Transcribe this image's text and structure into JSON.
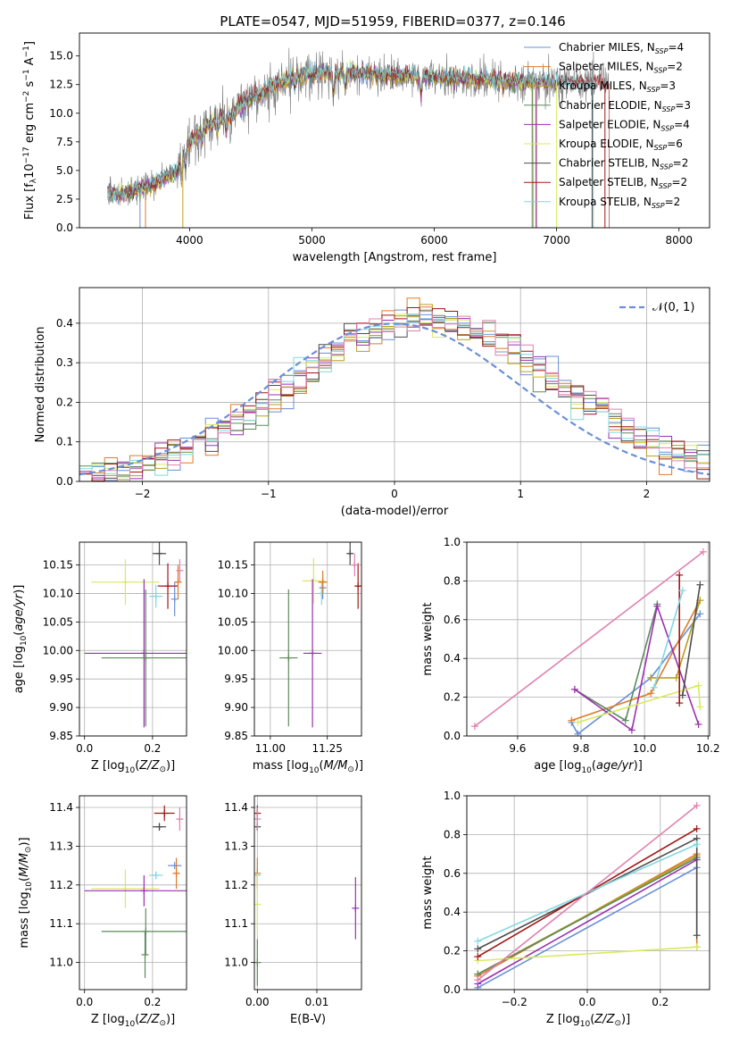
{
  "figure_title": "PLATE=0547, MJD=51959, FIBERID=0377, z=0.146",
  "colors": {
    "Chabrier MILES": "#6a8fd8",
    "Salpeter MILES": "#e07b2a",
    "Kroupa MILES": "#b8a020",
    "Chabrier ELODIE": "#5d8a5d",
    "Salpeter ELODIE": "#9b30b0",
    "Kroupa ELODIE": "#d8ea60",
    "Chabrier STELIB": "#4d4d4d",
    "Salpeter STELIB": "#a01818",
    "Kroupa STELIB": "#80d8e0",
    "extra_series": "#e080b0",
    "grid": "#b0b0b0",
    "normal_curve": "#6a8fd8"
  },
  "chart_data": [
    {
      "type": "line",
      "panel": "spectrum",
      "title": "PLATE=0547, MJD=51959, FIBERID=0377, z=0.146",
      "xlabel": "wavelength [Angstrom, rest frame]",
      "ylabel": "Flux [f_λ 10^-17 erg cm^-2 s^-1 A^-1]",
      "xlim": [
        3100,
        8250
      ],
      "ylim": [
        0,
        17
      ],
      "xticks": [
        4000,
        5000,
        6000,
        7000,
        8000
      ],
      "xtick_labels": [
        "4000",
        "5000",
        "6000",
        "7000",
        "8000"
      ],
      "yticks": [
        0,
        2.5,
        5,
        7.5,
        10,
        12.5,
        15
      ],
      "ytick_labels": [
        "0.0",
        "2.5",
        "5.0",
        "7.5",
        "10.0",
        "12.5",
        "15.0"
      ],
      "grid": false,
      "legend_position": "top-right",
      "legend": [
        {
          "model": "Chabrier MILES",
          "nssp": "4"
        },
        {
          "model": "Salpeter MILES",
          "nssp": "2"
        },
        {
          "model": "Kroupa MILES",
          "nssp": "3"
        },
        {
          "model": "Chabrier ELODIE",
          "nssp": "3"
        },
        {
          "model": "Salpeter ELODIE",
          "nssp": "4"
        },
        {
          "model": "Kroupa ELODIE",
          "nssp": "6"
        },
        {
          "model": "Chabrier STELIB",
          "nssp": "2"
        },
        {
          "model": "Salpeter STELIB",
          "nssp": "2"
        },
        {
          "model": "Kroupa STELIB",
          "nssp": "2"
        }
      ],
      "data_range": {
        "x_start": 3330,
        "x_end": 7430
      },
      "continuum": [
        [
          3330,
          3.0
        ],
        [
          3500,
          2.9
        ],
        [
          3700,
          3.8
        ],
        [
          3900,
          5.0
        ],
        [
          4000,
          7.5
        ],
        [
          4100,
          8.5
        ],
        [
          4300,
          9.8
        ],
        [
          4500,
          11.2
        ],
        [
          4700,
          12.5
        ],
        [
          4900,
          13.3
        ],
        [
          5100,
          13.5
        ],
        [
          5300,
          13.5
        ],
        [
          5500,
          13.4
        ],
        [
          5700,
          13.3
        ],
        [
          5900,
          13.2
        ],
        [
          6100,
          13.1
        ],
        [
          6300,
          13.0
        ],
        [
          6500,
          12.9
        ],
        [
          6700,
          12.8
        ],
        [
          6900,
          12.7
        ],
        [
          7100,
          12.7
        ],
        [
          7300,
          12.6
        ],
        [
          7430,
          12.5
        ]
      ],
      "absorption_lines": [
        [
          3934,
          2.0
        ],
        [
          3969,
          1.5
        ],
        [
          4102,
          1.0
        ],
        [
          4227,
          1.0
        ],
        [
          4300,
          1.6
        ],
        [
          4340,
          1.0
        ],
        [
          4861,
          1.0
        ],
        [
          5175,
          2.0
        ],
        [
          5270,
          1.0
        ],
        [
          5890,
          1.8
        ],
        [
          6563,
          1.0
        ]
      ],
      "dropouts": [
        3595,
        3640,
        3945,
        6800,
        6835,
        7000,
        7290,
        7395
      ]
    },
    {
      "type": "histogram",
      "panel": "residuals",
      "xlabel": "(data-model)/error",
      "ylabel": "Normed distribution",
      "xlim": [
        -2.5,
        2.5
      ],
      "ylim": [
        0,
        0.49
      ],
      "xticks": [
        -2,
        -1,
        0,
        1,
        2
      ],
      "xtick_labels": [
        "−2",
        "−1",
        "0",
        "1",
        "2"
      ],
      "yticks": [
        0,
        0.1,
        0.2,
        0.3,
        0.4
      ],
      "ytick_labels": [
        "0.0",
        "0.1",
        "0.2",
        "0.3",
        "0.4"
      ],
      "grid": true,
      "legend_position": "top-right",
      "legend_label": "𝒩(0, 1)",
      "bin_range": [
        -2.5,
        2.5
      ],
      "bin_width": 0.1,
      "reference_curve": {
        "type": "normal",
        "mean": 0,
        "sigma": 1
      },
      "envelope": {
        "mean": 0.25,
        "sigma": 1.05,
        "peak": 0.41
      },
      "series_count": 10
    },
    {
      "type": "scatter",
      "panel": "age-vs-Z",
      "xlabel": "Z [log10(Z/Z⊙)]",
      "ylabel": "age  [log10(age/yr)]",
      "xlim": [
        -0.015,
        0.3
      ],
      "ylim": [
        9.85,
        10.19
      ],
      "xticks": [
        0.0,
        0.2
      ],
      "xtick_labels": [
        "0.0",
        "0.2"
      ],
      "yticks": [
        9.85,
        9.9,
        9.95,
        10.0,
        10.05,
        10.1,
        10.15
      ],
      "ytick_labels": [
        "9.85",
        "9.90",
        "9.95",
        "10.00",
        "10.05",
        "10.10",
        "10.15"
      ],
      "grid": true,
      "points": [
        {
          "series": "Kroupa ELODIE",
          "x": 0.12,
          "y": 10.12,
          "xerr": 0.1,
          "yerr": 0.04
        },
        {
          "series": "Salpeter ELODIE",
          "x": 0.175,
          "y": 9.995,
          "xerr": 0.175,
          "yerr": 0.13
        },
        {
          "series": "Chabrier ELODIE",
          "x": 0.18,
          "y": 9.987,
          "xerr": 0.13,
          "yerr": 0.12
        },
        {
          "series": "Chabrier STELIB",
          "x": 0.22,
          "y": 10.17,
          "xerr": 0.02,
          "yerr": 0.02
        },
        {
          "series": "Kroupa STELIB",
          "x": 0.21,
          "y": 10.095,
          "xerr": 0.02,
          "yerr": 0.02
        },
        {
          "series": "Chabrier MILES",
          "x": 0.265,
          "y": 10.09,
          "xerr": 0.0,
          "yerr": 0.03
        },
        {
          "series": "Salpeter STELIB",
          "x": 0.245,
          "y": 10.113,
          "xerr": 0.03,
          "yerr": 0.04
        },
        {
          "series": "Salpeter MILES",
          "x": 0.275,
          "y": 10.12,
          "xerr": 0.01,
          "yerr": 0.03
        },
        {
          "series": "extra_series",
          "x": 0.28,
          "y": 10.14,
          "xerr": 0.01,
          "yerr": 0.02
        }
      ]
    },
    {
      "type": "scatter",
      "panel": "age-vs-mass",
      "xlabel": "mass [log10(M/M⊙)]",
      "ylabel": "",
      "xlim": [
        10.93,
        11.4
      ],
      "ylim": [
        9.85,
        10.19
      ],
      "xticks": [
        11.0,
        11.25
      ],
      "xtick_labels": [
        "11.00",
        "11.25"
      ],
      "yticks": [
        9.85,
        9.9,
        9.95,
        10.0,
        10.05,
        10.1,
        10.15
      ],
      "ytick_labels": [
        "9.85",
        "9.90",
        "9.95",
        "10.00",
        "10.05",
        "10.10",
        "10.15"
      ],
      "grid": true,
      "points": [
        {
          "series": "Kroupa ELODIE",
          "x": 11.19,
          "y": 10.122,
          "xerr": 0.05,
          "yerr": 0.04
        },
        {
          "series": "Salpeter ELODIE",
          "x": 11.185,
          "y": 9.995,
          "xerr": 0.04,
          "yerr": 0.13
        },
        {
          "series": "Chabrier ELODIE",
          "x": 11.08,
          "y": 9.987,
          "xerr": 0.04,
          "yerr": 0.12
        },
        {
          "series": "Chabrier STELIB",
          "x": 11.35,
          "y": 10.17,
          "xerr": 0.01,
          "yerr": 0.02
        },
        {
          "series": "Kroupa STELIB",
          "x": 11.225,
          "y": 10.1,
          "xerr": 0.01,
          "yerr": 0.02
        },
        {
          "series": "Chabrier MILES",
          "x": 11.23,
          "y": 10.11,
          "xerr": 0.01,
          "yerr": 0.02
        },
        {
          "series": "Salpeter MILES",
          "x": 11.23,
          "y": 10.12,
          "xerr": 0.02,
          "yerr": 0.02
        },
        {
          "series": "Salpeter STELIB",
          "x": 11.385,
          "y": 10.113,
          "xerr": 0.01,
          "yerr": 0.04
        },
        {
          "series": "extra_series",
          "x": 11.37,
          "y": 10.15,
          "xerr": 0.01,
          "yerr": 0.02
        }
      ]
    },
    {
      "type": "line",
      "panel": "mass-weight-vs-age",
      "xlabel": "age  [log10(age/yr)]",
      "ylabel": "mass weight",
      "xlim": [
        9.44,
        10.205
      ],
      "ylim": [
        0,
        1
      ],
      "xticks": [
        9.6,
        9.8,
        10.0,
        10.2
      ],
      "xtick_labels": [
        "9.6",
        "9.8",
        "10.0",
        "10.2"
      ],
      "yticks": [
        0,
        0.2,
        0.4,
        0.6,
        0.8,
        1.0
      ],
      "ytick_labels": [
        "0.0",
        "0.2",
        "0.4",
        "0.6",
        "0.8",
        "1.0"
      ],
      "grid": true,
      "series": [
        {
          "name": "Chabrier MILES",
          "x": [
            9.77,
            9.79,
            10.02,
            10.175
          ],
          "y": [
            0.07,
            0.01,
            0.3,
            0.63
          ]
        },
        {
          "name": "Salpeter MILES",
          "x": [
            9.77,
            10.02,
            10.175
          ],
          "y": [
            0.08,
            0.22,
            0.7
          ]
        },
        {
          "name": "Kroupa MILES",
          "x": [
            10.02,
            10.1,
            10.175
          ],
          "y": [
            0.3,
            0.3,
            0.7
          ]
        },
        {
          "name": "Chabrier ELODIE",
          "x": [
            9.78,
            9.94,
            10.04
          ],
          "y": [
            0.24,
            0.08,
            0.68
          ]
        },
        {
          "name": "Salpeter ELODIE",
          "x": [
            9.78,
            9.96,
            10.04,
            10.17
          ],
          "y": [
            0.24,
            0.03,
            0.67,
            0.06
          ]
        },
        {
          "name": "Kroupa ELODIE",
          "x": [
            9.79,
            10.17,
            10.175
          ],
          "y": [
            0.07,
            0.26,
            0.15
          ]
        },
        {
          "name": "Chabrier STELIB",
          "x": [
            10.12,
            10.175
          ],
          "y": [
            0.21,
            0.78
          ]
        },
        {
          "name": "Salpeter STELIB",
          "x": [
            10.11,
            10.11
          ],
          "y": [
            0.17,
            0.83
          ]
        },
        {
          "name": "Kroupa STELIB",
          "x": [
            10.03,
            10.12
          ],
          "y": [
            0.25,
            0.75
          ]
        },
        {
          "name": "extra_series",
          "x": [
            9.465,
            10.185
          ],
          "y": [
            0.05,
            0.95
          ]
        }
      ]
    },
    {
      "type": "scatter",
      "panel": "mass-vs-Z",
      "xlabel": "Z [log10(Z/Z⊙)]",
      "ylabel": "mass [log10(M/M⊙)]",
      "xlim": [
        -0.015,
        0.3
      ],
      "ylim": [
        10.93,
        11.43
      ],
      "xticks": [
        0.0,
        0.2
      ],
      "xtick_labels": [
        "0.0",
        "0.2"
      ],
      "yticks": [
        11.0,
        11.1,
        11.2,
        11.3,
        11.4
      ],
      "ytick_labels": [
        "11.0",
        "11.1",
        "11.2",
        "11.3",
        "11.4"
      ],
      "grid": true,
      "points": [
        {
          "series": "Kroupa ELODIE",
          "x": 0.12,
          "y": 11.19,
          "xerr": 0.1,
          "yerr": 0.05
        },
        {
          "series": "Salpeter ELODIE",
          "x": 0.175,
          "y": 11.185,
          "xerr": 0.175,
          "yerr": 0.04
        },
        {
          "series": "Chabrier ELODIE",
          "x": 0.18,
          "y": 11.08,
          "xerr": 0.13,
          "yerr": 0.06
        },
        {
          "series": "Chabrier ELODIE",
          "x": 0.178,
          "y": 11.02,
          "xerr": 0.0,
          "yerr": 0.06
        },
        {
          "series": "Chabrier STELIB",
          "x": 0.22,
          "y": 11.35,
          "xerr": 0.02,
          "yerr": 0.01
        },
        {
          "series": "Kroupa STELIB",
          "x": 0.21,
          "y": 11.225,
          "xerr": 0.02,
          "yerr": 0.01
        },
        {
          "series": "Chabrier MILES",
          "x": 0.265,
          "y": 11.25,
          "xerr": 0.02,
          "yerr": 0.0
        },
        {
          "series": "Salpeter MILES",
          "x": 0.27,
          "y": 11.23,
          "xerr": 0.01,
          "yerr": 0.04
        },
        {
          "series": "Salpeter STELIB",
          "x": 0.235,
          "y": 11.385,
          "xerr": 0.03,
          "yerr": 0.02
        },
        {
          "series": "extra_series",
          "x": 0.28,
          "y": 11.37,
          "xerr": 0.01,
          "yerr": 0.03
        }
      ]
    },
    {
      "type": "scatter",
      "panel": "mass-vs-EBV",
      "xlabel": "E(B-V)",
      "ylabel": "",
      "xlim": [
        -0.0005,
        0.0175
      ],
      "ylim": [
        10.93,
        11.43
      ],
      "xticks": [
        0.0,
        0.01
      ],
      "xtick_labels": [
        "0.00",
        "0.01"
      ],
      "yticks": [
        11.0,
        11.1,
        11.2,
        11.3,
        11.4
      ],
      "ytick_labels": [
        "11.0",
        "11.1",
        "11.2",
        "11.3",
        "11.4"
      ],
      "grid": true,
      "points": [
        {
          "series": "Salpeter STELIB",
          "x": 0.0,
          "y": 11.385,
          "xerr": 0,
          "yerr": 0.02
        },
        {
          "series": "Chabrier STELIB",
          "x": 0.0,
          "y": 11.35,
          "xerr": 0,
          "yerr": 0.01
        },
        {
          "series": "extra_series",
          "x": 0.0,
          "y": 11.37,
          "xerr": 0,
          "yerr": 0.03
        },
        {
          "series": "Kroupa STELIB",
          "x": 0.0,
          "y": 11.225,
          "xerr": 0,
          "yerr": 0.02
        },
        {
          "series": "Salpeter MILES",
          "x": 0.0,
          "y": 11.23,
          "xerr": 0,
          "yerr": 0.04
        },
        {
          "series": "Kroupa ELODIE",
          "x": 0.0,
          "y": 11.15,
          "xerr": 0,
          "yerr": 0.08
        },
        {
          "series": "Chabrier ELODIE",
          "x": 0.0,
          "y": 11.0,
          "xerr": 0,
          "yerr": 0.06
        },
        {
          "series": "Salpeter ELODIE",
          "x": 0.0165,
          "y": 11.14,
          "xerr": 0,
          "yerr": 0.08
        }
      ]
    },
    {
      "type": "line",
      "panel": "mass-weight-vs-Z",
      "xlabel": "Z [log10(Z/Z⊙)]",
      "ylabel": "mass weight",
      "xlim": [
        -0.33,
        0.335
      ],
      "ylim": [
        0,
        1
      ],
      "xticks": [
        -0.2,
        0.0,
        0.2
      ],
      "xtick_labels": [
        "−0.2",
        "0.0",
        "0.2"
      ],
      "yticks": [
        0,
        0.2,
        0.4,
        0.6,
        0.8,
        1.0
      ],
      "ytick_labels": [
        "0.0",
        "0.2",
        "0.4",
        "0.6",
        "0.8",
        "1.0"
      ],
      "grid": true,
      "series": [
        {
          "name": "Chabrier MILES",
          "x": [
            -0.3,
            0.3
          ],
          "y": [
            0.01,
            0.63
          ]
        },
        {
          "name": "Salpeter MILES",
          "x": [
            -0.3,
            0.3,
            0.3
          ],
          "y": [
            0.07,
            0.7,
            0.22
          ]
        },
        {
          "name": "Kroupa MILES",
          "x": [
            -0.3,
            0.3
          ],
          "y": [
            0.08,
            0.69
          ]
        },
        {
          "name": "Chabrier ELODIE",
          "x": [
            -0.3,
            0.3
          ],
          "y": [
            0.08,
            0.68
          ]
        },
        {
          "name": "Salpeter ELODIE",
          "x": [
            -0.3,
            0.3
          ],
          "y": [
            0.03,
            0.67
          ]
        },
        {
          "name": "Kroupa ELODIE",
          "x": [
            -0.3,
            0.3
          ],
          "y": [
            0.15,
            0.22
          ]
        },
        {
          "name": "Chabrier STELIB",
          "x": [
            -0.3,
            0.3,
            0.3
          ],
          "y": [
            0.21,
            0.78,
            0.28
          ]
        },
        {
          "name": "Salpeter STELIB",
          "x": [
            -0.3,
            0.3
          ],
          "y": [
            0.17,
            0.83
          ]
        },
        {
          "name": "Kroupa STELIB",
          "x": [
            -0.3,
            0.3
          ],
          "y": [
            0.25,
            0.75
          ]
        },
        {
          "name": "extra_series",
          "x": [
            -0.3,
            0.3
          ],
          "y": [
            0.05,
            0.95
          ]
        }
      ]
    }
  ]
}
